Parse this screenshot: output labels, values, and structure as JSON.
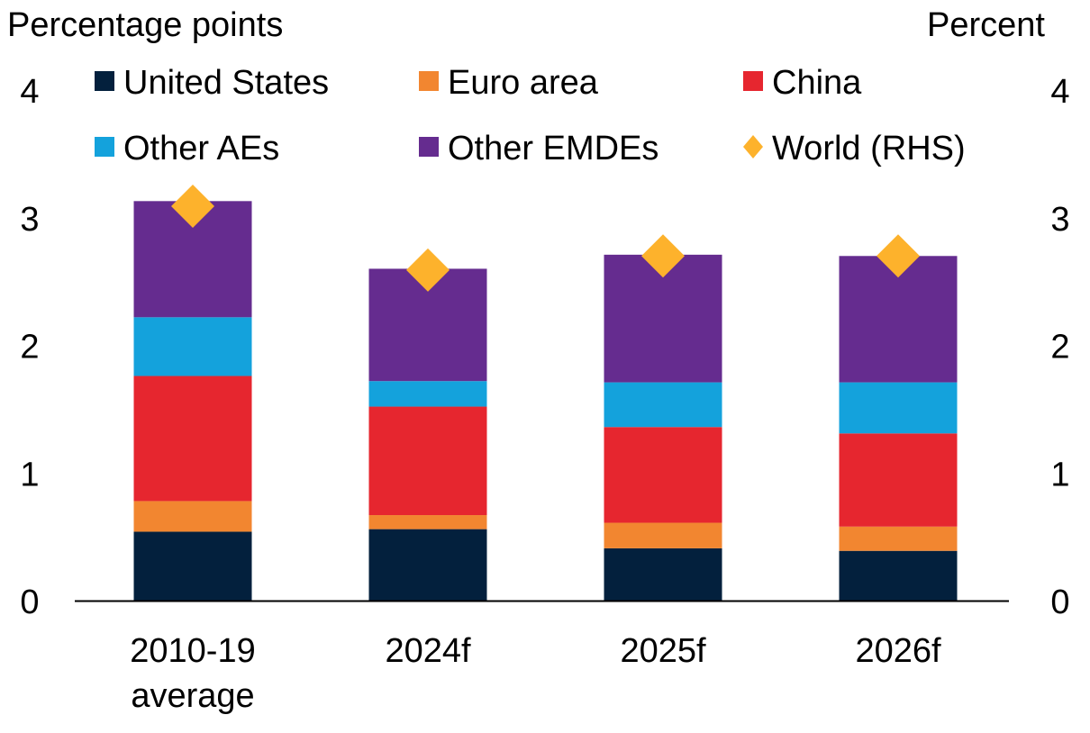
{
  "chart_data": {
    "type": "bar",
    "stacked": true,
    "left_axis_label": "Percentage points",
    "right_axis_label": "Percent",
    "categories": [
      [
        "2010-19",
        "average"
      ],
      [
        "2024f"
      ],
      [
        "2025f"
      ],
      [
        "2026f"
      ]
    ],
    "ylim": [
      0,
      4
    ],
    "yticks": [
      "0",
      "1",
      "2",
      "3",
      "4"
    ],
    "right_ylim": [
      0,
      4
    ],
    "right_yticks": [
      "0",
      "1",
      "2",
      "3",
      "4"
    ],
    "grid": false,
    "legend_placement": "top",
    "series": [
      {
        "name": "United States",
        "color": "#03203D",
        "values": [
          0.54,
          0.56,
          0.41,
          0.39
        ]
      },
      {
        "name": "Euro area",
        "color": "#F28630",
        "values": [
          0.24,
          0.11,
          0.2,
          0.19
        ]
      },
      {
        "name": "China",
        "color": "#E6262F",
        "values": [
          0.98,
          0.85,
          0.75,
          0.73
        ]
      },
      {
        "name": "Other AEs",
        "color": "#14A2DC",
        "values": [
          0.46,
          0.2,
          0.35,
          0.4
        ]
      },
      {
        "name": "Other EMDEs",
        "color": "#652C8F",
        "values": [
          0.91,
          0.88,
          1.0,
          0.99
        ]
      }
    ],
    "markers": {
      "name": "World (RHS)",
      "color": "#FDB22C",
      "shape": "diamond",
      "axis": "right",
      "values": [
        3.09,
        2.59,
        2.7,
        2.7
      ]
    }
  }
}
